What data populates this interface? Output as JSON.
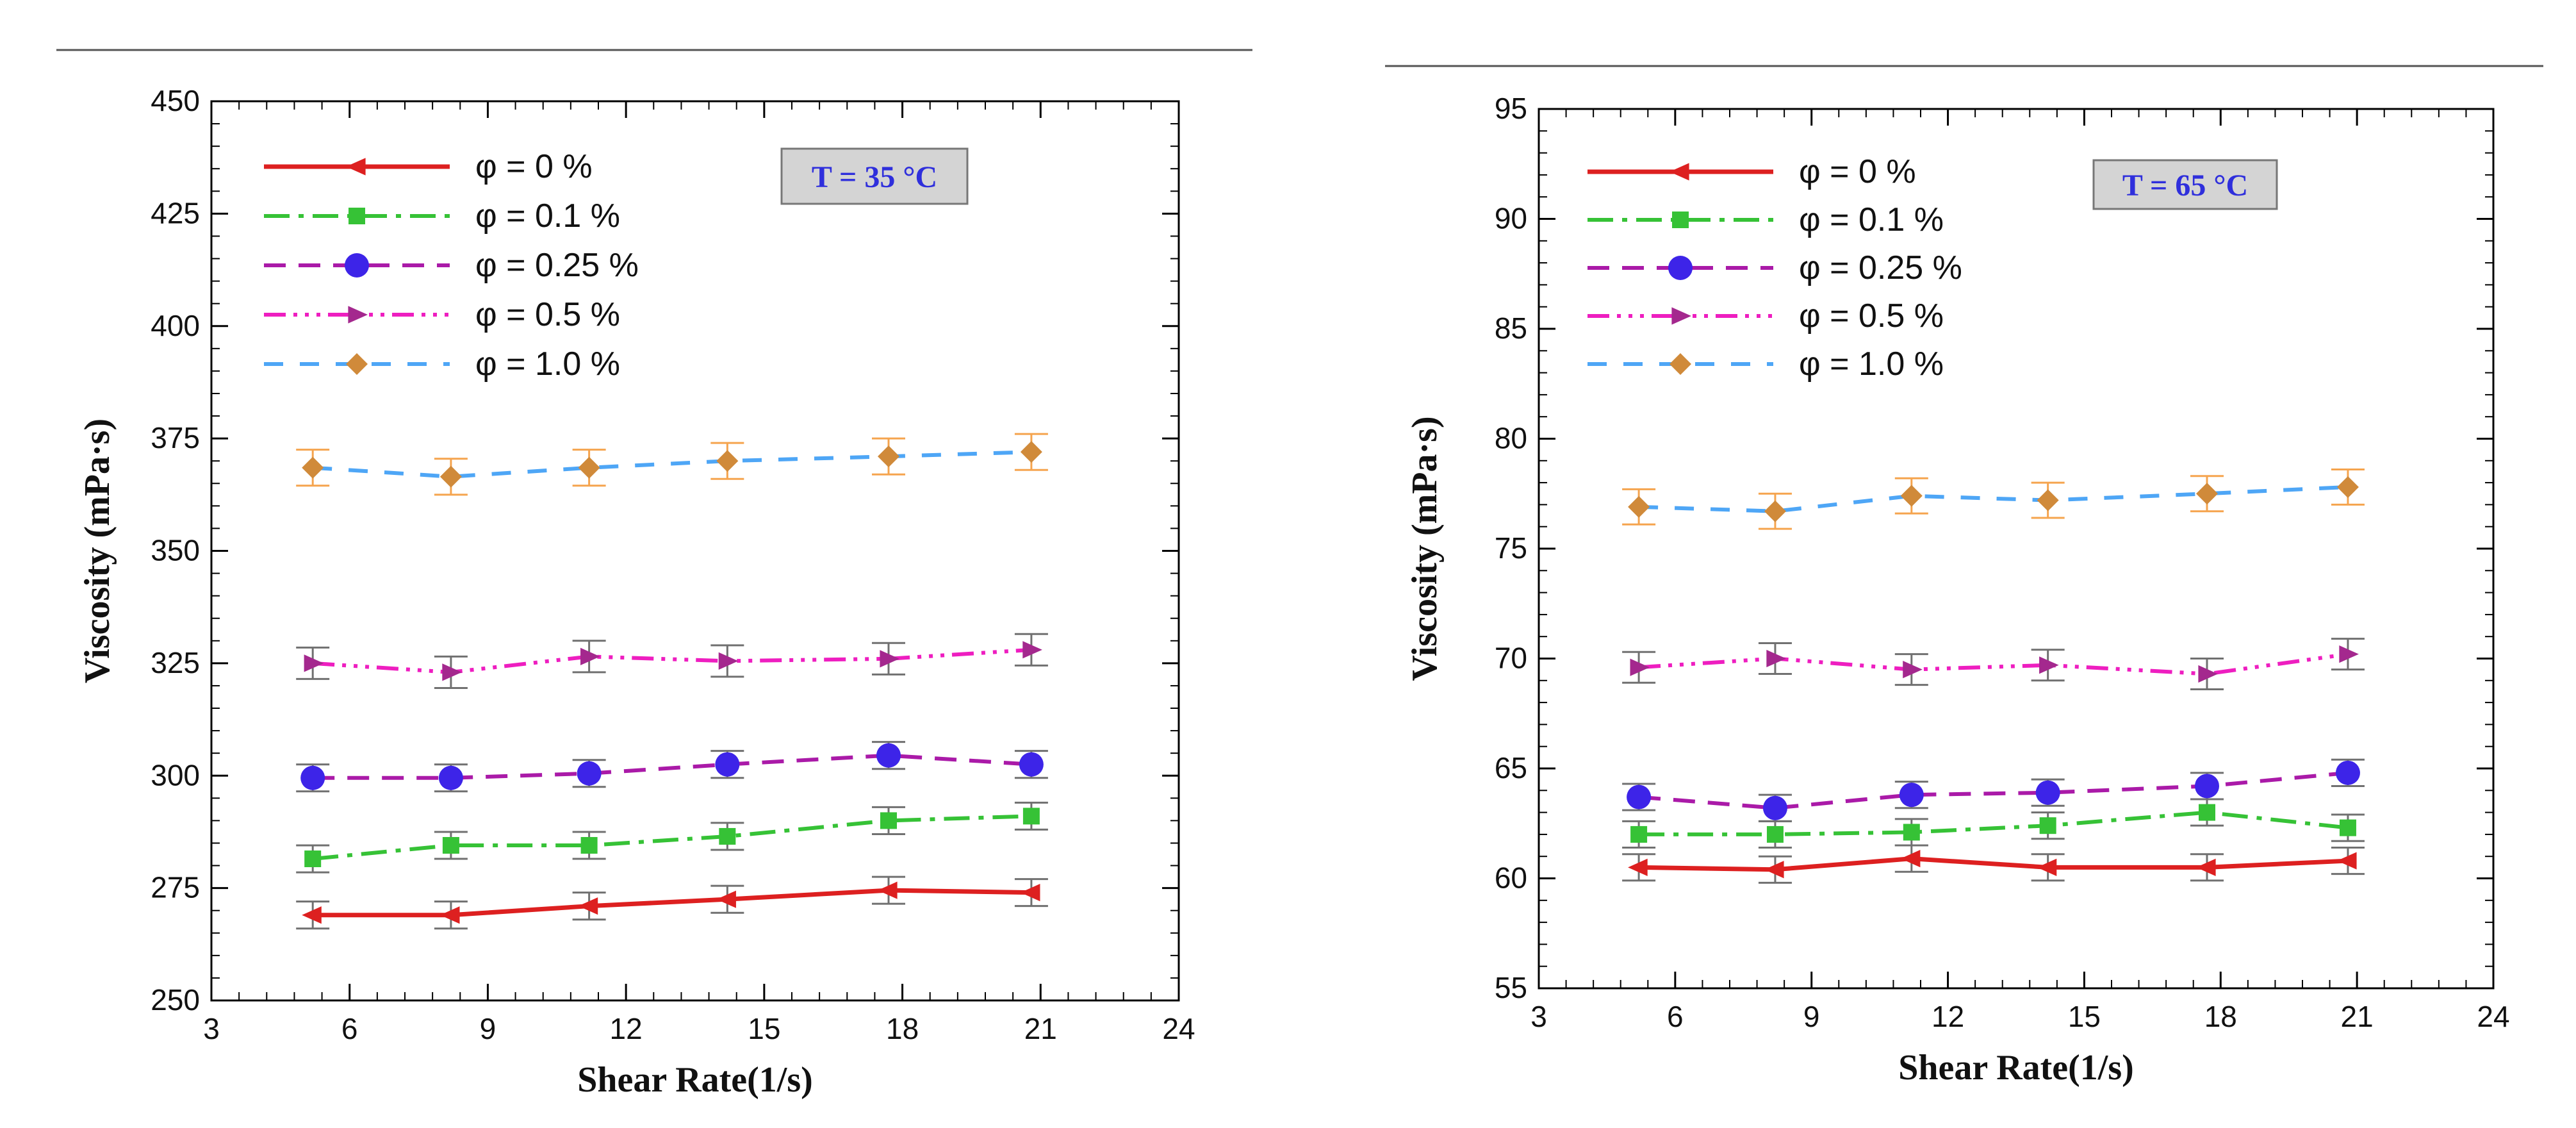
{
  "chart_data": [
    {
      "type": "line",
      "xlabel": "Shear Rate(1/s)",
      "ylabel": "Viscosity (mPa·s)",
      "xlim": [
        3,
        24
      ],
      "ylim": [
        250,
        450
      ],
      "xticks": [
        "3",
        "6",
        "9",
        "12",
        "15",
        "18",
        "21",
        "24"
      ],
      "yticks": [
        "250",
        "275",
        "300",
        "325",
        "350",
        "375",
        "400",
        "425",
        "450"
      ],
      "annotation": "T = 35 °C",
      "legend_position": "top-left",
      "series": [
        {
          "name": "φ = 0 %",
          "color": "#dd2020",
          "marker": "left-triangle",
          "x": [
            5.2,
            8.2,
            11.2,
            14.2,
            17.7,
            20.8
          ],
          "y": [
            269,
            269,
            271,
            272.5,
            274.5,
            274
          ],
          "err": [
            3,
            3,
            3,
            3,
            3,
            3
          ]
        },
        {
          "name": "φ = 0.1 %",
          "color": "#36c236",
          "marker": "square",
          "x": [
            5.2,
            8.2,
            11.2,
            14.2,
            17.7,
            20.8
          ],
          "y": [
            281.5,
            284.5,
            284.5,
            286.5,
            290,
            291
          ],
          "err": [
            3,
            3,
            3,
            3,
            3,
            3
          ]
        },
        {
          "name": "φ = 0.25 %",
          "color": "#aa1aa8",
          "markercolor": "#3d24e8",
          "marker": "circle",
          "x": [
            5.2,
            8.2,
            11.2,
            14.2,
            17.7,
            20.8
          ],
          "y": [
            299.5,
            299.5,
            300.5,
            302.5,
            304.5,
            302.5
          ],
          "err": [
            3,
            3,
            3,
            3,
            3,
            3
          ]
        },
        {
          "name": "φ = 0.5 %",
          "color": "#ee1ec0",
          "markercolor": "#a4288e",
          "marker": "right-triangle",
          "x": [
            5.2,
            8.2,
            11.2,
            14.2,
            17.7,
            20.8
          ],
          "y": [
            325,
            323,
            326.5,
            325.5,
            326,
            328
          ],
          "err": [
            3.5,
            3.5,
            3.5,
            3.5,
            3.5,
            3.5
          ]
        },
        {
          "name": "φ = 1.0 %",
          "color": "#4ea6f6",
          "markercolor": "#d08a3a",
          "marker": "diamond",
          "errcolor": "#f5a44e",
          "x": [
            5.2,
            8.2,
            11.2,
            14.2,
            17.7,
            20.8
          ],
          "y": [
            368.5,
            366.5,
            368.5,
            370,
            371,
            372
          ],
          "err": [
            4,
            4,
            4,
            4,
            4,
            4
          ]
        }
      ]
    },
    {
      "type": "line",
      "xlabel": "Shear Rate(1/s)",
      "ylabel": "Viscosity (mPa·s)",
      "xlim": [
        3,
        24
      ],
      "ylim": [
        55,
        95
      ],
      "xticks": [
        "3",
        "6",
        "9",
        "12",
        "15",
        "18",
        "21",
        "24"
      ],
      "yticks": [
        "55",
        "60",
        "65",
        "70",
        "75",
        "80",
        "85",
        "90",
        "95"
      ],
      "annotation": "T = 65 °C",
      "legend_position": "top-left",
      "series": [
        {
          "name": "φ = 0 %",
          "color": "#dd2020",
          "marker": "left-triangle",
          "x": [
            5.2,
            8.2,
            11.2,
            14.2,
            17.7,
            20.8
          ],
          "y": [
            60.5,
            60.4,
            60.9,
            60.5,
            60.5,
            60.8
          ],
          "err": [
            0.6,
            0.6,
            0.6,
            0.6,
            0.6,
            0.6
          ]
        },
        {
          "name": "φ = 0.1 %",
          "color": "#36c236",
          "marker": "square",
          "x": [
            5.2,
            8.2,
            11.2,
            14.2,
            17.7,
            20.8
          ],
          "y": [
            62,
            62,
            62.1,
            62.4,
            63,
            62.3
          ],
          "err": [
            0.6,
            0.6,
            0.6,
            0.6,
            0.6,
            0.6
          ]
        },
        {
          "name": "φ = 0.25 %",
          "color": "#aa1aa8",
          "markercolor": "#3d24e8",
          "marker": "circle",
          "x": [
            5.2,
            8.2,
            11.2,
            14.2,
            17.7,
            20.8
          ],
          "y": [
            63.7,
            63.2,
            63.8,
            63.9,
            64.2,
            64.8
          ],
          "err": [
            0.6,
            0.6,
            0.6,
            0.6,
            0.6,
            0.6
          ]
        },
        {
          "name": "φ = 0.5 %",
          "color": "#ee1ec0",
          "markercolor": "#a4288e",
          "marker": "right-triangle",
          "x": [
            5.2,
            8.2,
            11.2,
            14.2,
            17.7,
            20.8
          ],
          "y": [
            69.6,
            70,
            69.5,
            69.7,
            69.3,
            70.2
          ],
          "err": [
            0.7,
            0.7,
            0.7,
            0.7,
            0.7,
            0.7
          ]
        },
        {
          "name": "φ = 1.0 %",
          "color": "#4ea6f6",
          "markercolor": "#d08a3a",
          "marker": "diamond",
          "errcolor": "#f5a44e",
          "x": [
            5.2,
            8.2,
            11.2,
            14.2,
            17.7,
            20.8
          ],
          "y": [
            76.9,
            76.7,
            77.4,
            77.2,
            77.5,
            77.8
          ],
          "err": [
            0.8,
            0.8,
            0.8,
            0.8,
            0.8,
            0.8
          ]
        }
      ]
    }
  ]
}
